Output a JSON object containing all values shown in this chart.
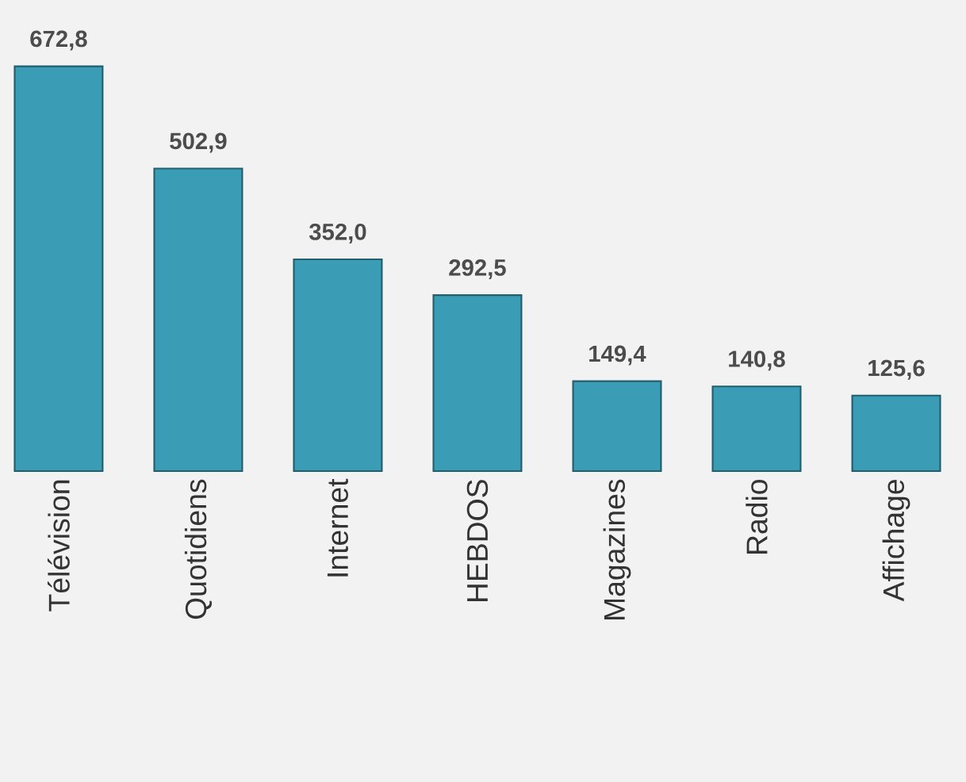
{
  "chart_data": {
    "type": "bar",
    "categories": [
      "Télévision",
      "Quotidiens",
      "Internet",
      "HEBDOS",
      "Magazines",
      "Radio",
      "Affichage"
    ],
    "values": [
      672.8,
      502.9,
      352.0,
      292.5,
      149.4,
      140.8,
      125.6
    ],
    "value_labels": [
      "672,8",
      "502,9",
      "352,0",
      "292,5",
      "149,4",
      "140,8",
      "125,6"
    ],
    "color": "#3b9db5"
  }
}
